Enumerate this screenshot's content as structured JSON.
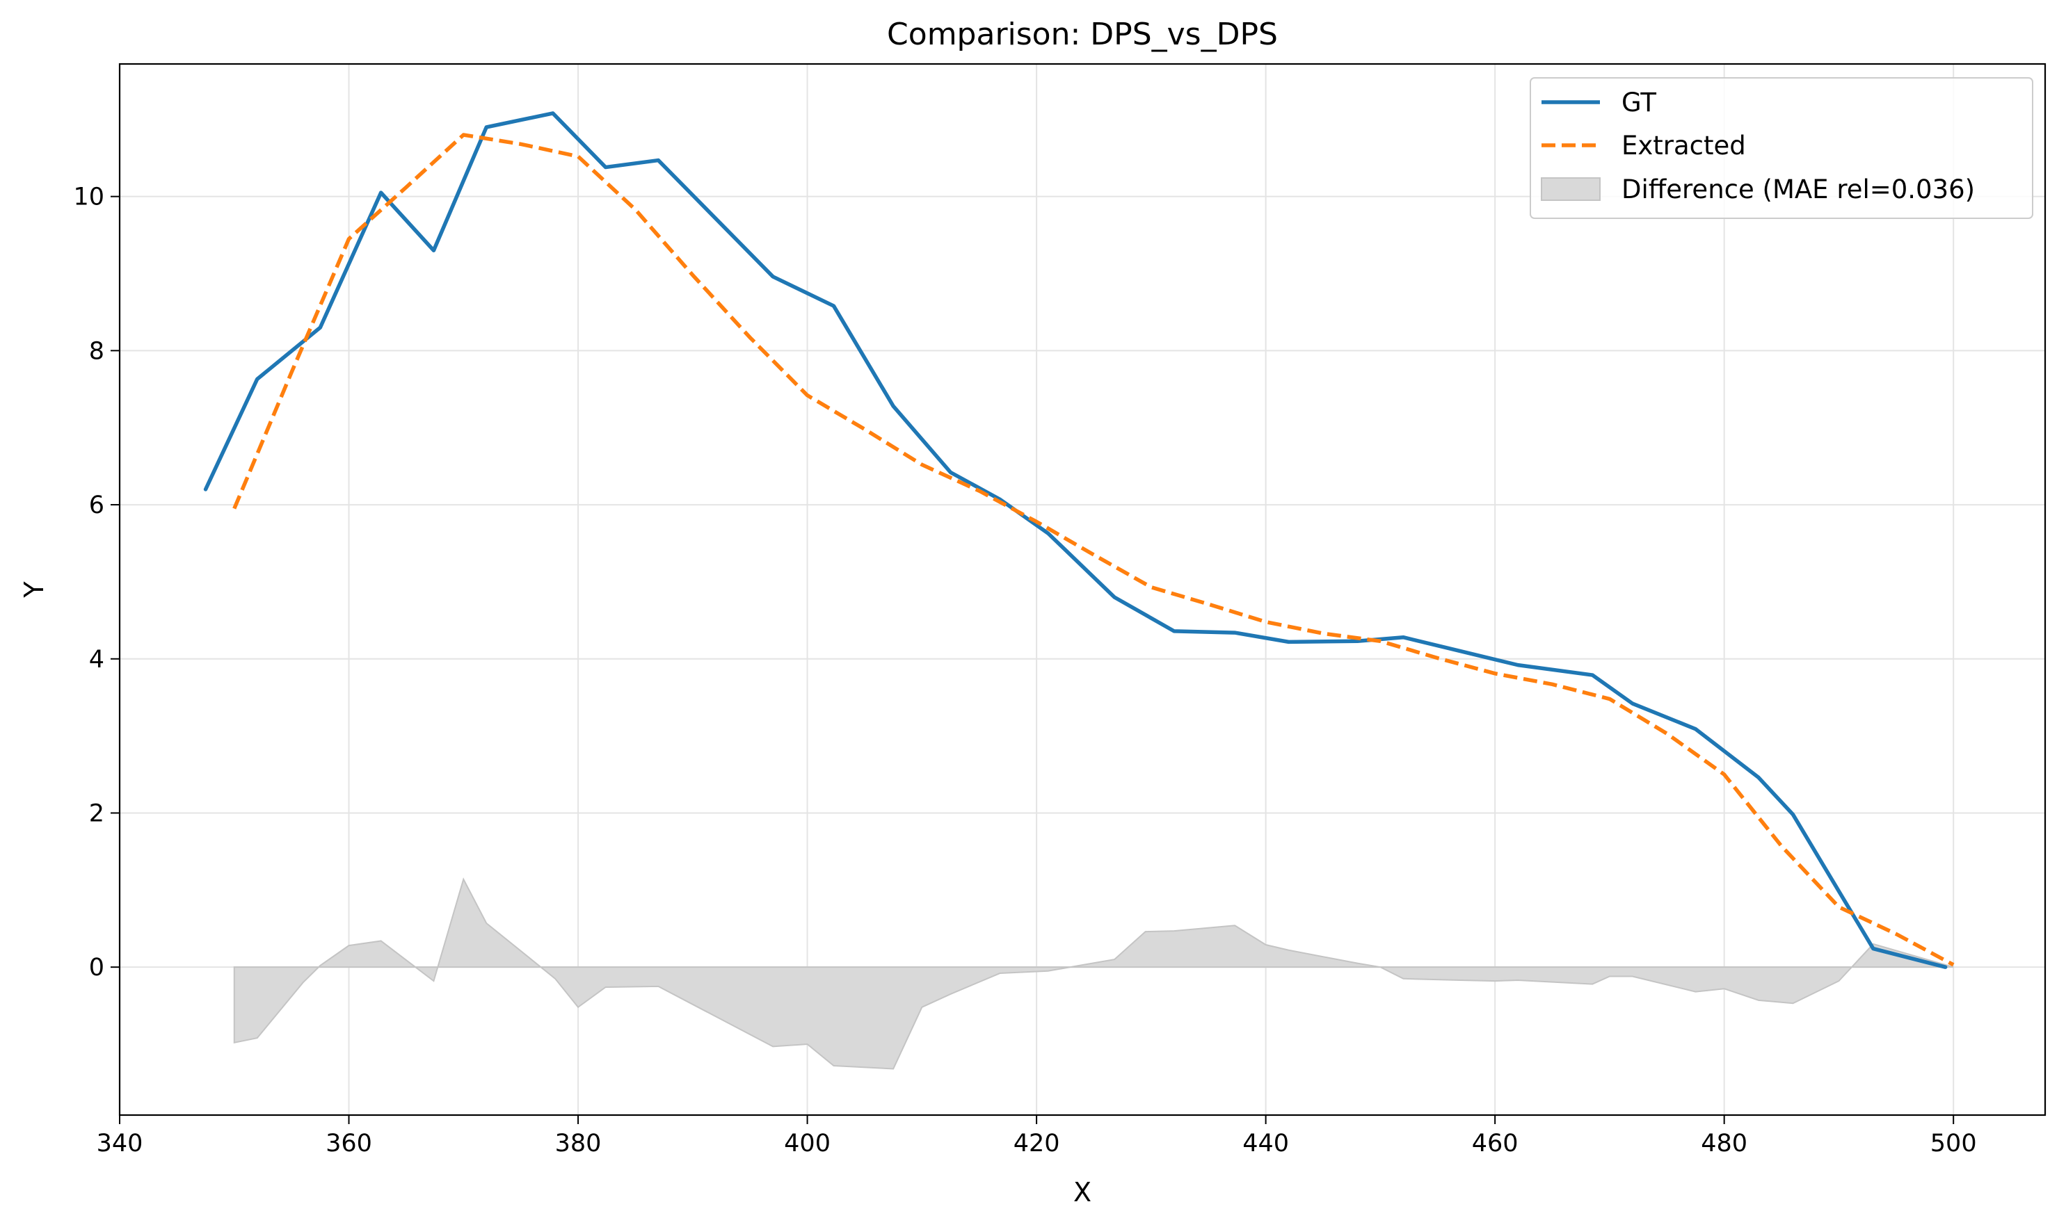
{
  "chart_data": {
    "type": "line",
    "title": "Comparison: DPS_vs_DPS",
    "xlabel": "X",
    "ylabel": "Y",
    "xlim": [
      340,
      508
    ],
    "ylim": [
      -1.92,
      11.72
    ],
    "xticks": [
      340,
      360,
      380,
      400,
      420,
      440,
      460,
      480,
      500
    ],
    "yticks": [
      0,
      2,
      4,
      6,
      8,
      10
    ],
    "grid": true,
    "legend_position": "top-right",
    "series": [
      {
        "name": "GT",
        "style": "solid",
        "color": "#1f77b4",
        "x": [
          347.5,
          352.0,
          357.5,
          362.8,
          367.4,
          372.0,
          377.8,
          382.4,
          387.0,
          397.0,
          402.3,
          407.5,
          412.5,
          416.8,
          421.0,
          426.8,
          432.0,
          437.3,
          442.0,
          448.0,
          452.0,
          457.0,
          462.0,
          468.5,
          472.0,
          477.5,
          483.0,
          486.0,
          493.0,
          499.3
        ],
        "y": [
          6.2,
          7.63,
          8.3,
          10.05,
          9.3,
          10.9,
          11.08,
          10.38,
          10.47,
          8.96,
          8.58,
          7.28,
          6.42,
          6.07,
          5.63,
          4.8,
          4.36,
          4.34,
          4.22,
          4.23,
          4.28,
          4.1,
          3.92,
          3.79,
          3.42,
          3.09,
          2.46,
          1.98,
          0.24,
          0.0
        ]
      },
      {
        "name": "Extracted",
        "style": "dashed",
        "color": "#ff7f0e",
        "x": [
          350.0,
          355.0,
          360.0,
          365.0,
          370.0,
          375.0,
          380.0,
          385.0,
          390.0,
          395.0,
          400.0,
          405.0,
          410.0,
          415.0,
          420.0,
          425.0,
          430.0,
          435.0,
          440.0,
          445.0,
          450.0,
          455.0,
          460.0,
          465.0,
          470.0,
          475.0,
          480.0,
          485.0,
          490.0,
          495.0,
          500.0
        ],
        "y": [
          5.95,
          7.72,
          9.45,
          10.12,
          10.8,
          10.68,
          10.52,
          9.83,
          8.98,
          8.17,
          7.42,
          6.98,
          6.52,
          6.18,
          5.78,
          5.35,
          4.93,
          4.71,
          4.48,
          4.33,
          4.23,
          4.01,
          3.81,
          3.67,
          3.48,
          3.03,
          2.5,
          1.57,
          0.78,
          0.43,
          0.03
        ]
      },
      {
        "name": "Difference (MAE rel=0.036)",
        "style": "filled",
        "color": "#d9d9d9",
        "x": [
          350.0,
          352.0,
          356.0,
          357.5,
          360.0,
          362.8,
          367.4,
          370.0,
          372.0,
          378.0,
          380.0,
          382.4,
          387.0,
          397.0,
          400.0,
          402.3,
          407.5,
          410.0,
          412.5,
          416.8,
          421.0,
          426.8,
          429.5,
          432.0,
          437.3,
          440.0,
          442.0,
          448.0,
          450.0,
          452.0,
          457.0,
          460.0,
          462.0,
          468.5,
          470.0,
          472.0,
          477.5,
          480.0,
          483.0,
          486.0,
          490.0,
          493.0,
          499.3,
          500.0
        ],
        "y": [
          -0.98,
          -0.92,
          -0.2,
          0.02,
          0.28,
          0.34,
          -0.18,
          1.14,
          0.57,
          -0.15,
          -0.52,
          -0.26,
          -0.25,
          -1.03,
          -1.0,
          -1.28,
          -1.32,
          -0.52,
          -0.35,
          -0.08,
          -0.05,
          0.1,
          0.46,
          0.47,
          0.54,
          0.29,
          0.22,
          0.05,
          0.0,
          -0.15,
          -0.17,
          -0.18,
          -0.17,
          -0.22,
          -0.12,
          -0.12,
          -0.32,
          -0.28,
          -0.43,
          -0.47,
          -0.18,
          0.3,
          0.03,
          0.0
        ]
      }
    ]
  }
}
